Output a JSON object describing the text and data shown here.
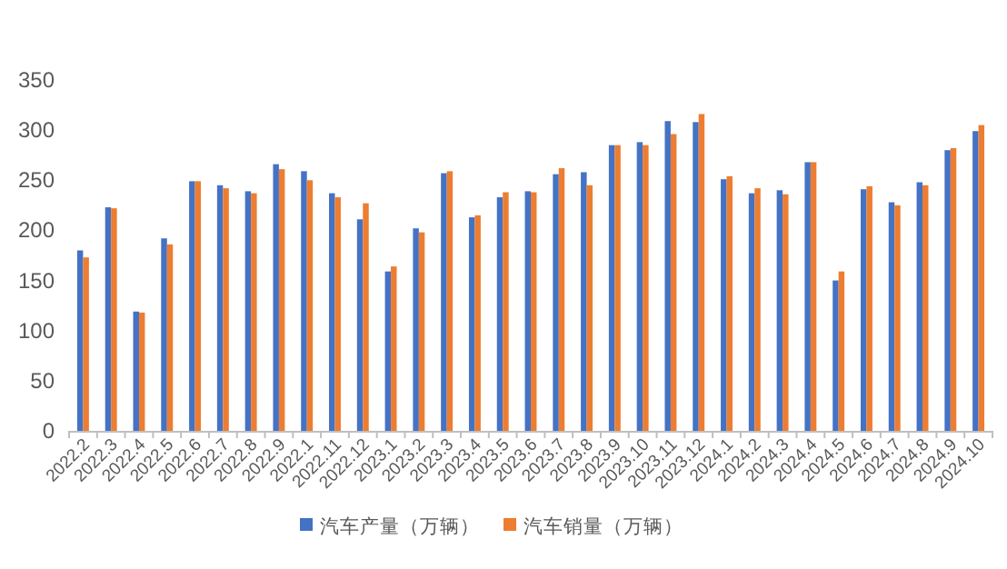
{
  "chart_data": {
    "type": "bar",
    "categories": [
      "2022.2",
      "2022.3",
      "2022.4",
      "2022.5",
      "2022.6",
      "2022.7",
      "2022.8",
      "2022.9",
      "2022.1",
      "2022.11",
      "2022.12",
      "2023.1",
      "2023.2",
      "2023.3",
      "2023.4",
      "2023.5",
      "2023.6",
      "2023.7",
      "2023.8",
      "2023.9",
      "2023.10",
      "2023.11",
      "2023.12",
      "2024.1",
      "2024.2",
      "2024.3",
      "2024.4",
      "2024.5",
      "2024.6",
      "2024.7",
      "2024.8",
      "2024.9",
      "2024.10"
    ],
    "series": [
      {
        "name": "汽车产量（万辆）",
        "color": "#4472c4",
        "values": [
          180,
          223,
          119,
          192,
          249,
          245,
          239,
          266,
          259,
          237,
          211,
          159,
          202,
          257,
          213,
          233,
          239,
          256,
          258,
          285,
          288,
          309,
          308,
          251,
          237,
          240,
          268,
          150,
          241,
          228,
          248,
          280,
          299
        ]
      },
      {
        "name": "汽车销量（万辆）",
        "color": "#ed7d31",
        "values": [
          173,
          222,
          118,
          186,
          249,
          242,
          237,
          261,
          250,
          233,
          227,
          164,
          198,
          259,
          215,
          238,
          238,
          262,
          245,
          285,
          285,
          296,
          316,
          254,
          242,
          236,
          268,
          159,
          244,
          225,
          245,
          282,
          305
        ]
      }
    ],
    "ylim": [
      0,
      350
    ],
    "yticks": [
      0,
      50,
      100,
      150,
      200,
      250,
      300,
      350
    ],
    "grid": false,
    "legend": "bottom"
  }
}
